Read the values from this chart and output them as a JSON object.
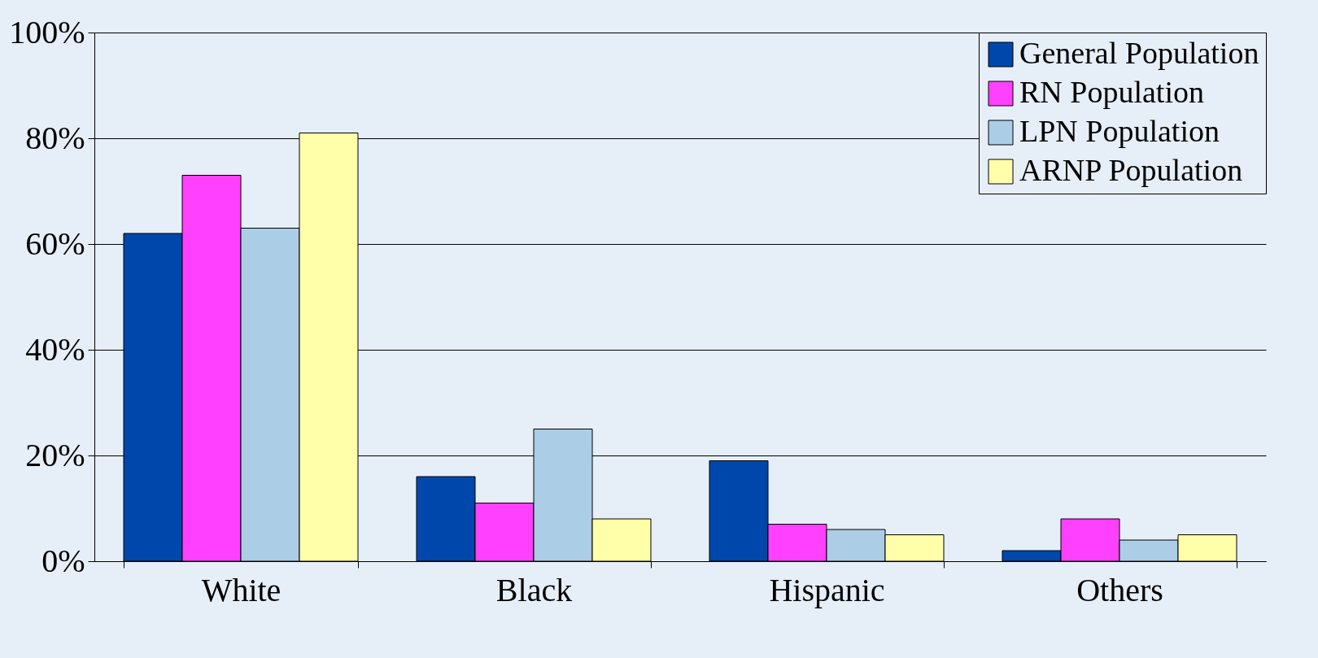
{
  "chart_data": {
    "type": "bar",
    "categories": [
      "White",
      "Black",
      "Hispanic",
      "Others"
    ],
    "series": [
      {
        "name": "General Population",
        "color": "#0047ab",
        "values": [
          62,
          16,
          19,
          2
        ]
      },
      {
        "name": "RN Population",
        "color": "#ff40ff",
        "values": [
          73,
          11,
          7,
          8
        ]
      },
      {
        "name": "LPN Population",
        "color": "#abcde6",
        "values": [
          63,
          25,
          6,
          4
        ]
      },
      {
        "name": "ARNP Population",
        "color": "#ffffaa",
        "values": [
          81,
          8,
          5,
          5
        ]
      }
    ],
    "ylim": [
      0,
      100
    ],
    "yticks": [
      {
        "value": 0,
        "label": "0%"
      },
      {
        "value": 20,
        "label": "20%"
      },
      {
        "value": 40,
        "label": "40%"
      },
      {
        "value": 60,
        "label": "60%"
      },
      {
        "value": 80,
        "label": "80%"
      },
      {
        "value": 100,
        "label": "100%"
      }
    ],
    "grid": "y",
    "legend": "top right"
  }
}
